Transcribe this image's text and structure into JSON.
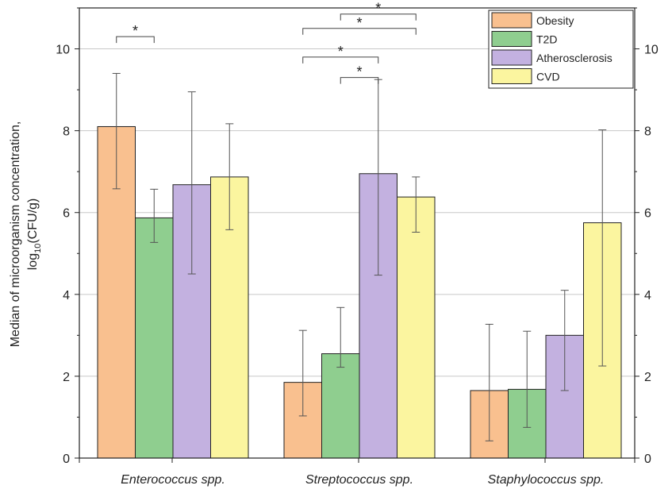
{
  "chart_data": {
    "type": "bar",
    "categories": [
      "Enterococcus spp.",
      "Streptococcus spp.",
      "Staphylococcus spp."
    ],
    "series": [
      {
        "name": "Obesity",
        "color": "#f9c08f",
        "values": [
          8.1,
          1.85,
          1.65
        ],
        "err_low": [
          6.58,
          1.03,
          0.42
        ],
        "err_high": [
          9.4,
          3.12,
          3.27
        ]
      },
      {
        "name": "T2D",
        "color": "#8fce8f",
        "values": [
          5.87,
          2.55,
          1.68
        ],
        "err_low": [
          5.27,
          2.22,
          0.75
        ],
        "err_high": [
          6.57,
          3.68,
          3.1
        ]
      },
      {
        "name": "Atherosclerosis",
        "color": "#c3b1e0",
        "values": [
          6.68,
          6.95,
          3.0
        ],
        "err_low": [
          4.5,
          4.47,
          1.65
        ],
        "err_high": [
          8.95,
          9.25,
          4.1
        ]
      },
      {
        "name": "CVD",
        "color": "#fbf59f",
        "values": [
          6.87,
          6.38,
          5.75
        ],
        "err_low": [
          5.58,
          5.52,
          2.25
        ],
        "err_high": [
          8.17,
          6.87,
          8.02
        ]
      }
    ],
    "ylabel_line1": "Median of microorganism concentration,",
    "ylabel_line2_pre": "log",
    "ylabel_line2_sub": "10",
    "ylabel_line2_post": "(CFU/g)",
    "ylim": [
      0,
      11
    ],
    "yticks": [
      "0",
      "2",
      "4",
      "6",
      "8",
      "10"
    ],
    "grid": true,
    "legend_position": "top-right",
    "significance": [
      {
        "category": 0,
        "from_series": 0,
        "to_series": 1,
        "level": 10.3,
        "label": "*"
      },
      {
        "category": 1,
        "from_series": 1,
        "to_series": 3,
        "level": 10.85,
        "label": "*"
      },
      {
        "category": 1,
        "from_series": 0,
        "to_series": 3,
        "level": 10.5,
        "label": "*"
      },
      {
        "category": 1,
        "from_series": 0,
        "to_series": 2,
        "level": 9.8,
        "label": "*"
      },
      {
        "category": 1,
        "from_series": 1,
        "to_series": 2,
        "level": 9.3,
        "label": "*"
      }
    ]
  }
}
